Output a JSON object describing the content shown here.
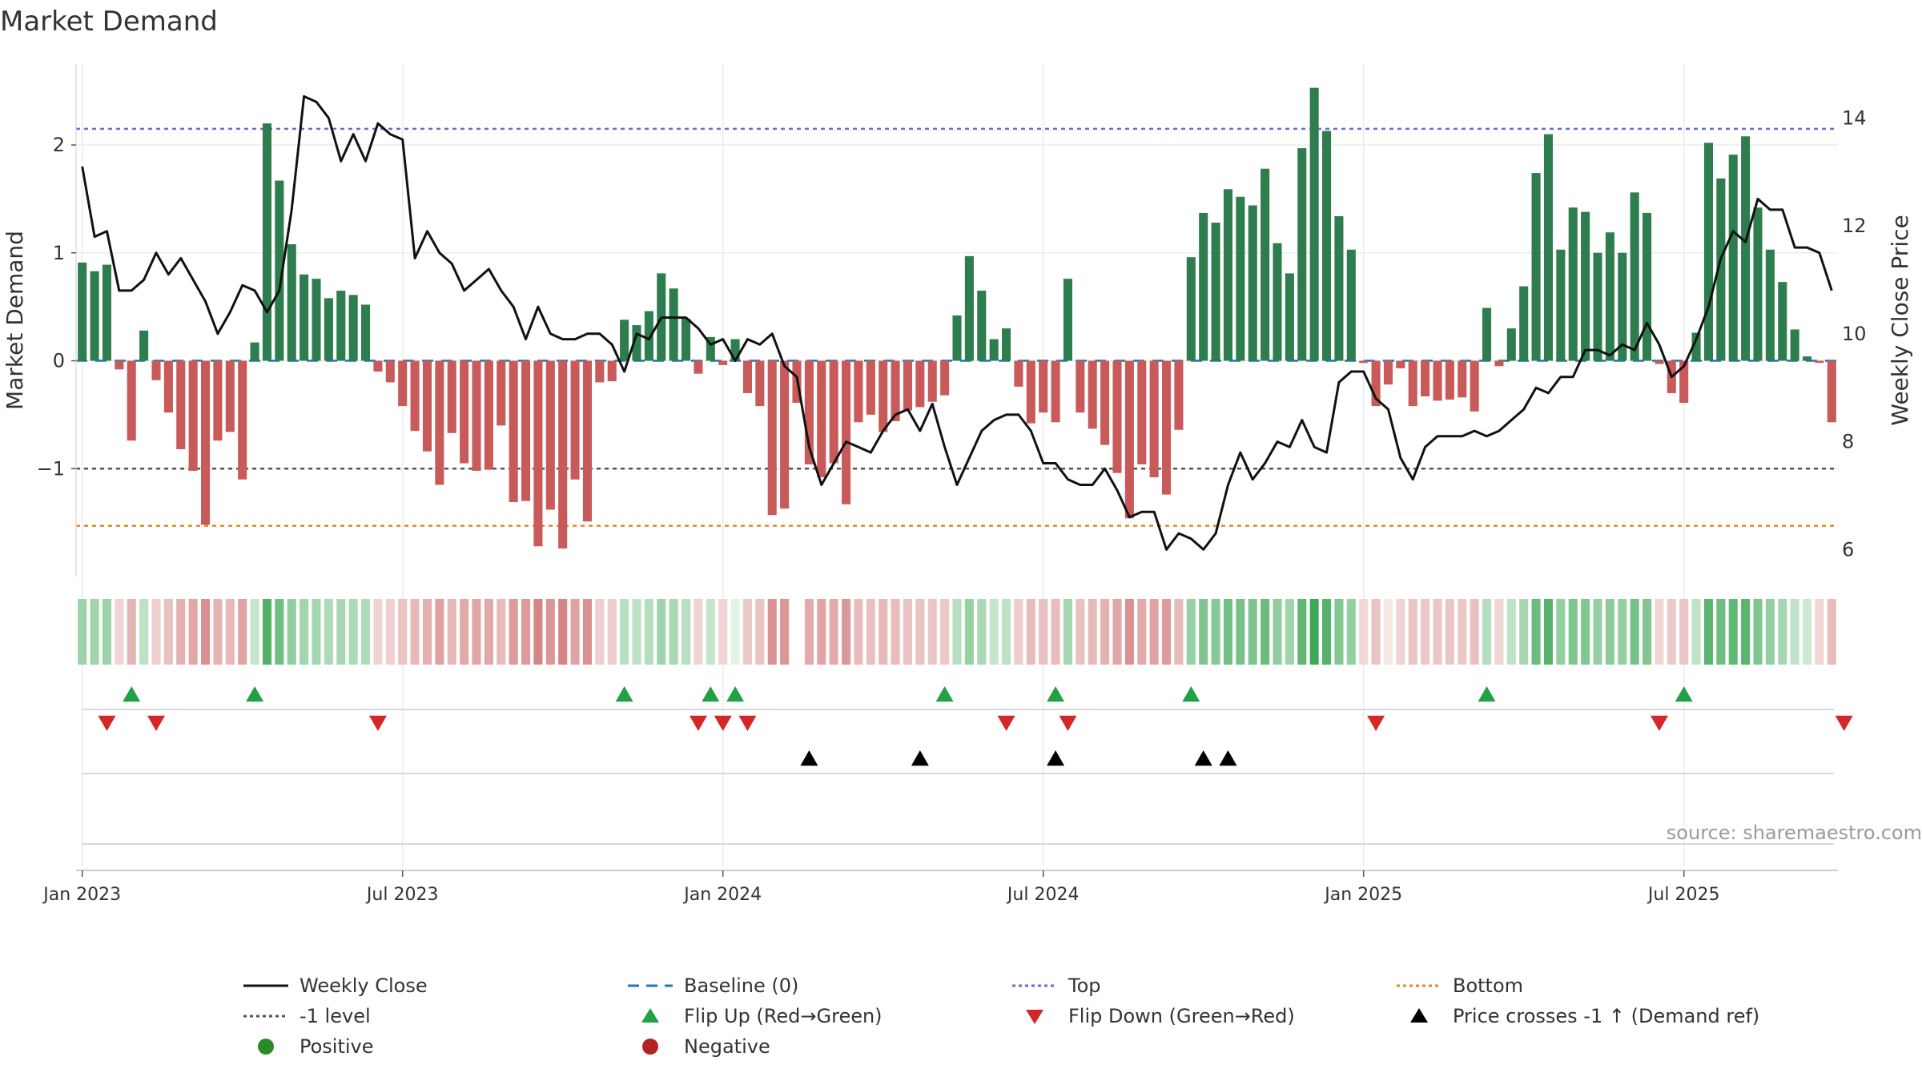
{
  "chart_data": {
    "type": "bar",
    "title": "Market Demand",
    "ylabel": "Market Demand",
    "y2label": "Weekly Close Price",
    "ylim": [
      -2.0,
      2.75
    ],
    "y2lim": [
      5.5,
      15.0
    ],
    "yticks": [
      {
        "v": 2,
        "t": "2"
      },
      {
        "v": 1,
        "t": "1"
      },
      {
        "v": 0,
        "t": "0"
      },
      {
        "v": -1,
        "t": "−1"
      }
    ],
    "y2ticks": [
      {
        "v": 14,
        "t": "14"
      },
      {
        "v": 12,
        "t": "12"
      },
      {
        "v": 10,
        "t": "10"
      },
      {
        "v": 8,
        "t": "8"
      },
      {
        "v": 6,
        "t": "6"
      }
    ],
    "xticks": [
      {
        "w": 0.5,
        "t": "Jan 2023"
      },
      {
        "w": 26.5,
        "t": "Jul 2023"
      },
      {
        "w": 52.5,
        "t": "Jan 2024"
      },
      {
        "w": 78.5,
        "t": "Jul 2024"
      },
      {
        "w": 104.5,
        "t": "Jan 2025"
      },
      {
        "w": 130.5,
        "t": "Jul 2025"
      }
    ],
    "levels": {
      "top": 2.15,
      "bottom": -1.53,
      "minus_one": -1.0,
      "baseline": 0
    },
    "demand": [
      0.91,
      0.83,
      0.89,
      -0.08,
      -0.74,
      0.28,
      -0.18,
      -0.48,
      -0.82,
      -1.02,
      -1.52,
      -0.74,
      -0.66,
      -1.1,
      0.17,
      2.2,
      1.67,
      1.08,
      0.8,
      0.76,
      0.58,
      0.65,
      0.61,
      0.52,
      -0.1,
      -0.2,
      -0.42,
      -0.65,
      -0.84,
      -1.15,
      -0.67,
      -0.95,
      -1.02,
      -1.01,
      -0.6,
      -1.31,
      -1.3,
      -1.72,
      -1.38,
      -1.74,
      -1.1,
      -1.49,
      -0.2,
      -0.19,
      0.38,
      0.33,
      0.46,
      0.81,
      0.67,
      0.39,
      -0.12,
      0.22,
      -0.04,
      0.2,
      -0.3,
      -0.42,
      -1.43,
      -1.37,
      -0.39,
      -0.96,
      -1.08,
      -0.95,
      -1.33,
      -0.57,
      -0.5,
      -0.66,
      -0.56,
      -0.46,
      -0.43,
      -0.38,
      -0.32,
      0.42,
      0.97,
      0.65,
      0.2,
      0.3,
      -0.24,
      -0.58,
      -0.48,
      -0.57,
      0.76,
      -0.48,
      -0.63,
      -0.78,
      -1.04,
      -1.46,
      -0.96,
      -1.08,
      -1.24,
      -0.64,
      0.96,
      1.37,
      1.28,
      1.59,
      1.52,
      1.44,
      1.78,
      1.09,
      0.81,
      1.97,
      2.53,
      2.13,
      1.34,
      1.03,
      -0.02,
      -0.42,
      -0.22,
      -0.07,
      -0.42,
      -0.33,
      -0.37,
      -0.36,
      -0.34,
      -0.47,
      0.49,
      -0.05,
      0.3,
      0.69,
      1.74,
      2.1,
      1.03,
      1.42,
      1.38,
      1.0,
      1.19,
      1.0,
      1.56,
      1.37,
      -0.03,
      -0.3,
      -0.39,
      0.26,
      2.02,
      1.69,
      1.91,
      2.08,
      1.42,
      1.03,
      0.73,
      0.29,
      0.04,
      -0.02,
      -0.57
    ],
    "close": [
      13.1,
      11.8,
      11.9,
      10.8,
      10.8,
      11.0,
      11.5,
      11.1,
      11.4,
      11.0,
      10.6,
      10.0,
      10.4,
      10.9,
      10.8,
      10.4,
      10.8,
      12.3,
      14.4,
      14.3,
      14.0,
      13.2,
      13.7,
      13.2,
      13.9,
      13.7,
      13.6,
      11.4,
      11.9,
      11.5,
      11.3,
      10.8,
      11.0,
      11.2,
      10.8,
      10.5,
      9.9,
      10.5,
      10.0,
      9.9,
      9.9,
      10.0,
      10.0,
      9.8,
      9.3,
      10.0,
      9.9,
      10.3,
      10.3,
      10.3,
      10.1,
      9.8,
      9.9,
      9.5,
      9.9,
      9.8,
      10.0,
      9.4,
      9.2,
      7.9,
      7.2,
      7.6,
      8.0,
      7.9,
      7.8,
      8.2,
      8.5,
      8.6,
      8.2,
      8.7,
      7.9,
      7.2,
      7.7,
      8.2,
      8.4,
      8.5,
      8.5,
      8.2,
      7.6,
      7.6,
      7.3,
      7.2,
      7.2,
      7.5,
      7.1,
      6.6,
      6.7,
      6.7,
      6.0,
      6.3,
      6.2,
      6.0,
      6.3,
      7.2,
      7.8,
      7.3,
      7.6,
      8.0,
      7.9,
      8.4,
      7.9,
      7.8,
      9.1,
      9.3,
      9.3,
      8.8,
      8.6,
      7.7,
      7.3,
      7.9,
      8.1,
      8.1,
      8.1,
      8.2,
      8.1,
      8.2,
      8.4,
      8.6,
      9.0,
      8.9,
      9.2,
      9.2,
      9.7,
      9.7,
      9.6,
      9.8,
      9.7,
      10.2,
      9.8,
      9.2,
      9.4,
      9.9,
      10.5,
      11.4,
      11.9,
      11.7,
      12.5,
      12.3,
      12.3,
      11.6,
      11.6,
      11.5,
      10.8
    ]
  },
  "markers": {
    "flip_up": [
      4,
      14,
      44,
      51,
      53,
      70,
      79,
      90,
      114,
      130
    ],
    "flip_down": [
      2,
      6,
      24,
      50,
      52,
      54,
      75,
      80,
      105,
      128,
      143
    ],
    "price_cross": [
      59,
      68,
      79,
      91,
      93
    ]
  },
  "heat": {
    "missing": [
      58
    ],
    "light": [
      53,
      106
    ]
  },
  "source": "source: sharemaestro.com",
  "legend": {
    "weekly_close": "Weekly Close",
    "baseline": "Baseline (0)",
    "top": "Top",
    "bottom": "Bottom",
    "minus_one": "-1 level",
    "flip_up": "Flip Up (Red→Green)",
    "flip_down": "Flip Down (Green→Red)",
    "price_cross": "Price crosses -1 ↑ (Demand ref)",
    "positive": "Positive",
    "negative": "Negative"
  },
  "colors": {
    "positive_bar": "#2e7d4f",
    "negative_bar": "#c85a5a",
    "close_line": "#111111",
    "baseline": "#1f77b4",
    "top": "#6a6ad4",
    "bottom": "#e08a1e",
    "minus_one": "#555555",
    "flip_up": "#22a045",
    "flip_down": "#d62728",
    "price_cross": "#000000",
    "positive_dot": "#2a8a2a",
    "negative_dot": "#b22222",
    "heat_positive": "#3fa856",
    "heat_negative": "#c86060"
  }
}
